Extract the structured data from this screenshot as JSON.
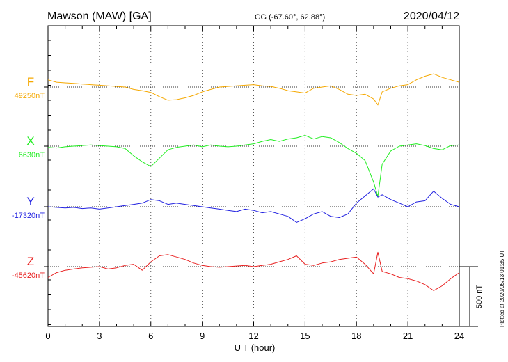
{
  "header": {
    "station": "Mawson (MAW)  [GA]",
    "coords": "GG (-67.60°,  62.88°)",
    "date": "2020/04/12"
  },
  "footer": {
    "plotted": "Plotted at 2020/05/13 01:35 UT",
    "scale_label": "500 nT"
  },
  "chart_data": {
    "type": "line",
    "title": "Mawson (MAW)  [GA]",
    "xlabel": "U T (hour)",
    "ylabel": "",
    "xlim": [
      0,
      24
    ],
    "xticks": [
      0,
      3,
      6,
      9,
      12,
      15,
      18,
      21,
      24
    ],
    "grid": true,
    "scale_bar_nT": 500,
    "series": [
      {
        "name": "F",
        "baseline_label": "49250nT",
        "color": "#f5a800",
        "x": [
          0,
          0.5,
          1,
          1.5,
          2,
          2.5,
          3,
          3.5,
          4,
          4.5,
          5,
          5.5,
          6,
          6.5,
          7,
          7.5,
          8,
          8.5,
          9,
          9.5,
          10,
          10.5,
          11,
          11.5,
          12,
          12.5,
          13,
          13.5,
          14,
          14.5,
          15,
          15.5,
          16,
          16.5,
          17,
          17.5,
          18,
          18.5,
          19,
          19.25,
          19.5,
          20,
          20.5,
          21,
          21.5,
          22,
          22.5,
          23,
          23.5,
          24
        ],
        "y": [
          60,
          40,
          35,
          30,
          25,
          20,
          15,
          10,
          5,
          0,
          -20,
          -30,
          -45,
          -80,
          -110,
          -105,
          -90,
          -70,
          -40,
          -20,
          0,
          5,
          10,
          15,
          20,
          10,
          5,
          -10,
          -30,
          -40,
          -50,
          -10,
          0,
          10,
          -20,
          -60,
          -70,
          -60,
          -100,
          -150,
          -40,
          -10,
          10,
          20,
          60,
          90,
          110,
          80,
          60,
          40
        ]
      },
      {
        "name": "X",
        "baseline_label": "6630nT",
        "color": "#22ee22",
        "x": [
          0,
          0.5,
          1,
          1.5,
          2,
          2.5,
          3,
          3.5,
          4,
          4.5,
          5,
          5.5,
          6,
          6.5,
          7,
          7.5,
          8,
          8.5,
          9,
          9.5,
          10,
          10.5,
          11,
          11.5,
          12,
          12.5,
          13,
          13.5,
          14,
          14.5,
          15,
          15.5,
          16,
          16.5,
          17,
          17.5,
          18,
          18.5,
          19,
          19.25,
          19.5,
          20,
          20.5,
          21,
          21.5,
          22,
          22.5,
          23,
          23.5,
          24
        ],
        "y": [
          -10,
          -15,
          -5,
          0,
          5,
          10,
          5,
          0,
          -5,
          -20,
          -80,
          -130,
          -170,
          -100,
          -30,
          -10,
          0,
          10,
          -5,
          10,
          0,
          -5,
          0,
          10,
          20,
          40,
          55,
          40,
          60,
          70,
          90,
          60,
          80,
          70,
          30,
          -20,
          -60,
          -120,
          -300,
          -420,
          -150,
          -40,
          0,
          10,
          20,
          5,
          -20,
          -30,
          5,
          10
        ]
      },
      {
        "name": "Y",
        "baseline_label": "-17320nT",
        "color": "#2020e0",
        "x": [
          0,
          0.5,
          1,
          1.5,
          2,
          2.5,
          3,
          3.5,
          4,
          4.5,
          5,
          5.5,
          6,
          6.5,
          7,
          7.5,
          8,
          8.5,
          9,
          9.5,
          10,
          10.5,
          11,
          11.5,
          12,
          12.5,
          13,
          13.5,
          14,
          14.5,
          15,
          15.5,
          16,
          16.5,
          17,
          17.5,
          18,
          18.5,
          19,
          19.25,
          19.5,
          20,
          20.5,
          21,
          21.5,
          22,
          22.5,
          23,
          23.5,
          24
        ],
        "y": [
          0,
          -5,
          -10,
          -5,
          -15,
          -10,
          -20,
          -10,
          0,
          10,
          20,
          30,
          60,
          50,
          20,
          30,
          20,
          10,
          0,
          -10,
          -20,
          -30,
          -40,
          -20,
          -30,
          -50,
          -40,
          -60,
          -80,
          -130,
          -100,
          -60,
          -40,
          -80,
          -90,
          -60,
          30,
          90,
          150,
          80,
          100,
          60,
          30,
          0,
          40,
          50,
          130,
          70,
          20,
          0
        ]
      },
      {
        "name": "Z",
        "baseline_label": "-45620nT",
        "color": "#e82020",
        "x": [
          0,
          0.5,
          1,
          1.5,
          2,
          2.5,
          3,
          3.5,
          4,
          4.5,
          5,
          5.5,
          6,
          6.5,
          7,
          7.5,
          8,
          8.5,
          9,
          9.5,
          10,
          10.5,
          11,
          11.5,
          12,
          12.5,
          13,
          13.5,
          14,
          14.5,
          15,
          15.5,
          16,
          16.5,
          17,
          17.5,
          18,
          18.5,
          19,
          19.25,
          19.5,
          20,
          20.5,
          21,
          21.5,
          22,
          22.5,
          23,
          23.5,
          24
        ],
        "y": [
          -90,
          -50,
          -30,
          -20,
          -10,
          -5,
          0,
          -20,
          -10,
          10,
          20,
          -30,
          40,
          90,
          100,
          80,
          60,
          30,
          10,
          0,
          -5,
          0,
          5,
          10,
          0,
          10,
          20,
          40,
          60,
          90,
          20,
          10,
          30,
          40,
          60,
          70,
          80,
          20,
          -60,
          120,
          -40,
          -60,
          -90,
          -100,
          -120,
          -150,
          -200,
          -160,
          -100,
          -50
        ]
      }
    ]
  }
}
